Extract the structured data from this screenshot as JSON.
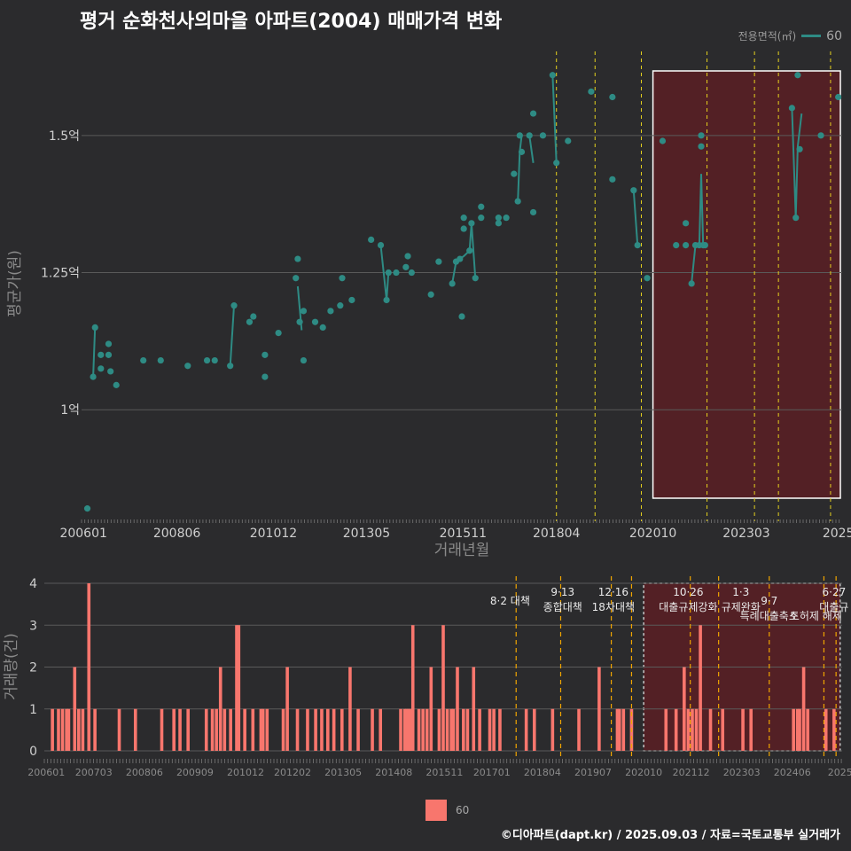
{
  "title": "평거 순화천사의마을 아파트(2004) 매매가격 변화",
  "credit": "©디아파트(dapt.kr) / 2025.09.03 / 자료=국토교통부 실거래가",
  "colors": {
    "background": "#2b2b2d",
    "price_line": "#2e8b84",
    "price_point": "#2e8b84",
    "volume_bar": "#f8766d",
    "policy_line_top": "#e6d21e",
    "policy_line_bottom": "#f0a500",
    "highlight_fill": "#5a1f24",
    "highlight_border_top": "#ffffff",
    "highlight_border_bottom": "#c8c8c8"
  },
  "chart_data": [
    {
      "type": "line",
      "title": "평거 순화천사의마을 아파트(2004) 매매가격 변화",
      "xlabel": "거래년월",
      "ylabel": "평균가(원)",
      "x_tick_labels": [
        "200601",
        "200806",
        "201012",
        "201305",
        "201511",
        "201804",
        "202010",
        "202303",
        "2025"
      ],
      "y_ticks": [
        1.0,
        1.25,
        1.5
      ],
      "y_tick_labels": [
        "1억",
        "1.25억",
        "1.5억"
      ],
      "ylim": [
        0.8,
        1.65
      ],
      "xlim": [
        2005.95,
        2025.65
      ],
      "legend_title": "전용면적(㎡)",
      "series": [
        {
          "name": "60",
          "points": [
            [
              2006.1,
              0.82
            ],
            [
              2006.25,
              1.06
            ],
            [
              2006.3,
              1.15
            ],
            [
              2006.45,
              1.1
            ],
            [
              2006.45,
              1.075
            ],
            [
              2006.65,
              1.12
            ],
            [
              2006.65,
              1.1
            ],
            [
              2006.7,
              1.07
            ],
            [
              2006.85,
              1.045
            ],
            [
              2007.55,
              1.09
            ],
            [
              2008.0,
              1.09
            ],
            [
              2008.7,
              1.08
            ],
            [
              2009.2,
              1.09
            ],
            [
              2009.4,
              1.09
            ],
            [
              2009.8,
              1.08
            ],
            [
              2009.9,
              1.19
            ],
            [
              2010.3,
              1.16
            ],
            [
              2010.4,
              1.17
            ],
            [
              2010.7,
              1.1
            ],
            [
              2010.7,
              1.06
            ],
            [
              2011.05,
              1.14
            ],
            [
              2011.5,
              1.24
            ],
            [
              2011.55,
              1.275
            ],
            [
              2011.6,
              1.16
            ],
            [
              2011.7,
              1.18
            ],
            [
              2011.7,
              1.09
            ],
            [
              2012.0,
              1.16
            ],
            [
              2012.2,
              1.15
            ],
            [
              2012.4,
              1.18
            ],
            [
              2012.65,
              1.19
            ],
            [
              2012.7,
              1.24
            ],
            [
              2012.95,
              1.2
            ],
            [
              2013.45,
              1.31
            ],
            [
              2013.7,
              1.3
            ],
            [
              2013.85,
              1.2
            ],
            [
              2013.9,
              1.25
            ],
            [
              2014.1,
              1.25
            ],
            [
              2014.35,
              1.26
            ],
            [
              2014.4,
              1.28
            ],
            [
              2014.5,
              1.25
            ],
            [
              2015.0,
              1.21
            ],
            [
              2015.2,
              1.27
            ],
            [
              2015.55,
              1.23
            ],
            [
              2015.65,
              1.27
            ],
            [
              2015.75,
              1.275
            ],
            [
              2015.8,
              1.17
            ],
            [
              2015.85,
              1.33
            ],
            [
              2015.85,
              1.35
            ],
            [
              2016.0,
              1.29
            ],
            [
              2016.05,
              1.34
            ],
            [
              2016.15,
              1.24
            ],
            [
              2016.3,
              1.35
            ],
            [
              2016.3,
              1.37
            ],
            [
              2016.75,
              1.34
            ],
            [
              2016.75,
              1.35
            ],
            [
              2016.95,
              1.35
            ],
            [
              2017.15,
              1.43
            ],
            [
              2017.25,
              1.38
            ],
            [
              2017.3,
              1.5
            ],
            [
              2017.35,
              1.47
            ],
            [
              2017.55,
              1.5
            ],
            [
              2017.65,
              1.54
            ],
            [
              2017.65,
              1.36
            ],
            [
              2017.9,
              1.5
            ],
            [
              2018.15,
              1.61
            ],
            [
              2018.25,
              1.45
            ],
            [
              2018.55,
              1.49
            ],
            [
              2019.15,
              1.58
            ],
            [
              2019.7,
              1.57
            ],
            [
              2019.7,
              1.42
            ],
            [
              2020.25,
              1.4
            ],
            [
              2020.35,
              1.3
            ],
            [
              2020.6,
              1.24
            ],
            [
              2021.0,
              1.49
            ],
            [
              2021.35,
              1.3
            ],
            [
              2021.6,
              1.34
            ],
            [
              2021.6,
              1.3
            ],
            [
              2021.75,
              1.23
            ],
            [
              2021.85,
              1.3
            ],
            [
              2021.95,
              1.3
            ],
            [
              2022.0,
              1.48
            ],
            [
              2022.0,
              1.5
            ],
            [
              2022.05,
              1.3
            ],
            [
              2022.1,
              1.3
            ],
            [
              2024.35,
              1.55
            ],
            [
              2024.45,
              1.35
            ],
            [
              2024.5,
              1.61
            ],
            [
              2024.55,
              1.475
            ],
            [
              2025.1,
              1.5
            ],
            [
              2025.55,
              1.57
            ]
          ],
          "lines": [
            [
              [
                2006.25,
                1.06
              ],
              [
                2006.3,
                1.15
              ]
            ],
            [
              [
                2009.8,
                1.08
              ],
              [
                2009.9,
                1.19
              ]
            ],
            [
              [
                2011.55,
                1.225
              ],
              [
                2011.65,
                1.145
              ]
            ],
            [
              [
                2013.7,
                1.3
              ],
              [
                2013.85,
                1.2
              ],
              [
                2013.9,
                1.25
              ]
            ],
            [
              [
                2015.55,
                1.23
              ],
              [
                2015.65,
                1.27
              ],
              [
                2015.75,
                1.275
              ],
              [
                2015.85,
                1.28
              ],
              [
                2016.0,
                1.29
              ],
              [
                2016.05,
                1.34
              ],
              [
                2016.15,
                1.24
              ]
            ],
            [
              [
                2017.25,
                1.38
              ],
              [
                2017.3,
                1.47
              ],
              [
                2017.35,
                1.5
              ]
            ],
            [
              [
                2017.55,
                1.5
              ],
              [
                2017.65,
                1.45
              ]
            ],
            [
              [
                2018.15,
                1.61
              ],
              [
                2018.25,
                1.45
              ]
            ],
            [
              [
                2020.25,
                1.4
              ],
              [
                2020.35,
                1.3
              ]
            ],
            [
              [
                2021.75,
                1.23
              ],
              [
                2021.85,
                1.3
              ],
              [
                2021.95,
                1.3
              ],
              [
                2022.0,
                1.43
              ],
              [
                2022.05,
                1.3
              ]
            ],
            [
              [
                2024.35,
                1.55
              ],
              [
                2024.45,
                1.35
              ],
              [
                2024.5,
                1.48
              ],
              [
                2024.6,
                1.54
              ]
            ]
          ]
        }
      ],
      "policy_lines_x": [
        2018.25,
        2019.25,
        2020.45,
        2022.15,
        2023.38,
        2024.0,
        2025.35,
        2025.68
      ],
      "highlight_x": [
        2020.75,
        2025.8
      ]
    },
    {
      "type": "bar",
      "xlabel": "",
      "ylabel": "거래량(건)",
      "x_tick_labels": [
        "200601",
        "200703",
        "200806",
        "200909",
        "201012",
        "201202",
        "201305",
        "201408",
        "201511",
        "201701",
        "201804",
        "201907",
        "202010",
        "202112",
        "202303",
        "202406",
        "2025"
      ],
      "y_ticks": [
        0,
        1,
        2,
        3,
        4
      ],
      "ylim": [
        0,
        4.2
      ],
      "xlim": [
        2005.95,
        2025.65
      ],
      "legend_label": "60",
      "bars": [
        [
          2006.15,
          1
        ],
        [
          2006.3,
          1
        ],
        [
          2006.4,
          1
        ],
        [
          2006.5,
          1
        ],
        [
          2006.55,
          1
        ],
        [
          2006.7,
          2
        ],
        [
          2006.8,
          1
        ],
        [
          2006.9,
          1
        ],
        [
          2007.05,
          4
        ],
        [
          2007.2,
          1
        ],
        [
          2007.8,
          1
        ],
        [
          2008.2,
          1
        ],
        [
          2008.85,
          1
        ],
        [
          2009.15,
          1
        ],
        [
          2009.3,
          1
        ],
        [
          2009.5,
          1
        ],
        [
          2009.95,
          1
        ],
        [
          2010.1,
          1
        ],
        [
          2010.2,
          1
        ],
        [
          2010.3,
          2
        ],
        [
          2010.4,
          1
        ],
        [
          2010.55,
          1
        ],
        [
          2010.7,
          3
        ],
        [
          2010.75,
          3
        ],
        [
          2010.9,
          1
        ],
        [
          2011.1,
          1
        ],
        [
          2011.3,
          1
        ],
        [
          2011.35,
          1
        ],
        [
          2011.45,
          1
        ],
        [
          2011.85,
          1
        ],
        [
          2011.95,
          2
        ],
        [
          2012.2,
          1
        ],
        [
          2012.45,
          1
        ],
        [
          2012.65,
          1
        ],
        [
          2012.8,
          1
        ],
        [
          2012.95,
          1
        ],
        [
          2013.1,
          1
        ],
        [
          2013.3,
          1
        ],
        [
          2013.5,
          2
        ],
        [
          2013.7,
          1
        ],
        [
          2014.05,
          1
        ],
        [
          2014.25,
          1
        ],
        [
          2014.75,
          1
        ],
        [
          2014.85,
          1
        ],
        [
          2014.9,
          1
        ],
        [
          2014.95,
          1
        ],
        [
          2015.0,
          1
        ],
        [
          2015.05,
          3
        ],
        [
          2015.2,
          1
        ],
        [
          2015.3,
          1
        ],
        [
          2015.4,
          1
        ],
        [
          2015.5,
          2
        ],
        [
          2015.7,
          1
        ],
        [
          2015.8,
          3
        ],
        [
          2015.9,
          1
        ],
        [
          2016.0,
          1
        ],
        [
          2016.05,
          1
        ],
        [
          2016.15,
          2
        ],
        [
          2016.3,
          1
        ],
        [
          2016.4,
          1
        ],
        [
          2016.55,
          2
        ],
        [
          2016.7,
          1
        ],
        [
          2016.95,
          1
        ],
        [
          2017.05,
          1
        ],
        [
          2017.2,
          1
        ],
        [
          2017.85,
          1
        ],
        [
          2018.05,
          1
        ],
        [
          2018.5,
          1
        ],
        [
          2019.15,
          1
        ],
        [
          2019.65,
          2
        ],
        [
          2020.1,
          1
        ],
        [
          2020.15,
          1
        ],
        [
          2020.25,
          1
        ],
        [
          2020.45,
          1
        ],
        [
          2021.3,
          1
        ],
        [
          2021.55,
          1
        ],
        [
          2021.75,
          2
        ],
        [
          2021.85,
          1
        ],
        [
          2021.95,
          1
        ],
        [
          2022.05,
          1
        ],
        [
          2022.15,
          3
        ],
        [
          2022.4,
          1
        ],
        [
          2022.7,
          1
        ],
        [
          2023.2,
          1
        ],
        [
          2023.4,
          1
        ],
        [
          2024.45,
          1
        ],
        [
          2024.55,
          1
        ],
        [
          2024.6,
          1
        ],
        [
          2024.7,
          2
        ],
        [
          2024.8,
          1
        ],
        [
          2025.25,
          1
        ],
        [
          2025.45,
          1
        ]
      ],
      "policy_lines_x": [
        2017.6,
        2018.7,
        2019.95,
        2020.45,
        2021.9,
        2022.6,
        2023.85,
        2025.2,
        2025.5
      ],
      "highlight_x": [
        2020.75,
        2025.6
      ],
      "annotations": [
        {
          "x": 2017.45,
          "row": 0,
          "lines": [
            "8·2 대책"
          ]
        },
        {
          "x": 2018.75,
          "row": -1,
          "lines": [
            "9·13",
            "종합대책"
          ]
        },
        {
          "x": 2020.0,
          "row": -1,
          "lines": [
            "12·16",
            "18차대책"
          ]
        },
        {
          "x": 2021.85,
          "row": -1,
          "lines": [
            "10·26",
            "대출규제강화"
          ]
        },
        {
          "x": 2023.15,
          "row": -1,
          "lines": [
            "1·3",
            "규제완화"
          ]
        },
        {
          "x": 2023.85,
          "row": 0,
          "lines": [
            "9·7",
            "특례대출축소"
          ]
        },
        {
          "x": 2025.0,
          "row": 0,
          "lines": [
            "",
            "토허제 해제"
          ]
        },
        {
          "x": 2025.45,
          "row": -1,
          "lines": [
            "6·27",
            "대출규"
          ]
        }
      ]
    }
  ]
}
